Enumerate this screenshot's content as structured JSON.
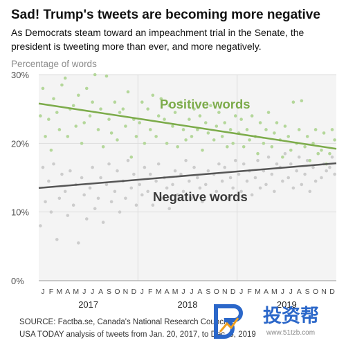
{
  "title": "Sad! Trump's tweets are becoming more negative",
  "subtitle": [
    "As Democrats steam toward an impeachment trial in the Senate, the",
    "president is tweeting more than ever, and more negatively."
  ],
  "source": [
    "SOURCE: Factba.se, Canada's National Research Council",
    "USA TODAY analysis of tweets from Jan. 20, 2017, to Dec. 5, 2019"
  ],
  "watermark": {
    "text": "投资帮",
    "url": "www.51tzb.com"
  },
  "colors": {
    "positive": "#7cab4a",
    "positive_points": "#b4d79a",
    "negative": "#555555",
    "negative_points": "#cccccc",
    "grid": "#dddddd",
    "background": "#f4f4f4"
  },
  "chart_data": {
    "type": "scatter",
    "title": "Sad! Trump's tweets are becoming more negative",
    "ylabel": "Percentage of words",
    "xlabel": "",
    "ylim": [
      0,
      30
    ],
    "y_ticks": [
      "0%",
      "10%",
      "20%",
      "30%"
    ],
    "x_range": [
      "2017-01",
      "2019-12"
    ],
    "month_labels": [
      "J",
      "F",
      "M",
      "A",
      "M",
      "J",
      "J",
      "A",
      "S",
      "O",
      "N",
      "D",
      "J",
      "F",
      "M",
      "A",
      "M",
      "J",
      "J",
      "A",
      "S",
      "O",
      "N",
      "D",
      "J",
      "F",
      "M",
      "A",
      "M",
      "J",
      "J",
      "A",
      "S",
      "O",
      "N",
      "D"
    ],
    "year_labels": [
      "2017",
      "2018",
      "2019"
    ],
    "grid": true,
    "series": [
      {
        "name": "Positive words",
        "trend": {
          "start": {
            "x": "2017-01",
            "y": 25.8
          },
          "end": {
            "x": "2019-12",
            "y": 19.2
          }
        },
        "points": [
          [
            "2017-01",
            24
          ],
          [
            "2017-01",
            28
          ],
          [
            "2017-01",
            21
          ],
          [
            "2017-02",
            23.5
          ],
          [
            "2017-02",
            19
          ],
          [
            "2017-02",
            26.5
          ],
          [
            "2017-03",
            24.5
          ],
          [
            "2017-03",
            22
          ],
          [
            "2017-03",
            28.5
          ],
          [
            "2017-04",
            29.5
          ],
          [
            "2017-04",
            21
          ],
          [
            "2017-04",
            25
          ],
          [
            "2017-05",
            25.5
          ],
          [
            "2017-05",
            22.5
          ],
          [
            "2017-05",
            27
          ],
          [
            "2017-06",
            20
          ],
          [
            "2017-06",
            23
          ],
          [
            "2017-06",
            28
          ],
          [
            "2017-07",
            24
          ],
          [
            "2017-07",
            26
          ],
          [
            "2017-07",
            30
          ],
          [
            "2017-08",
            22
          ],
          [
            "2017-08",
            25
          ],
          [
            "2017-08",
            19.5
          ],
          [
            "2017-09",
            29.8
          ],
          [
            "2017-09",
            23.5
          ],
          [
            "2017-09",
            21.5
          ],
          [
            "2017-10",
            26
          ],
          [
            "2017-10",
            20.5
          ],
          [
            "2017-10",
            24.5
          ],
          [
            "2017-11",
            25
          ],
          [
            "2017-11",
            22.5
          ],
          [
            "2017-11",
            27.5
          ],
          [
            "2017-12",
            18
          ],
          [
            "2017-12",
            23.5
          ],
          [
            "2017-12",
            21
          ],
          [
            "2018-01",
            23
          ],
          [
            "2018-01",
            26
          ],
          [
            "2018-01",
            20
          ],
          [
            "2018-02",
            25
          ],
          [
            "2018-02",
            22
          ],
          [
            "2018-02",
            27
          ],
          [
            "2018-03",
            21
          ],
          [
            "2018-03",
            24
          ],
          [
            "2018-03",
            26.5
          ],
          [
            "2018-04",
            23.5
          ],
          [
            "2018-04",
            20
          ],
          [
            "2018-04",
            25.5
          ],
          [
            "2018-05",
            22.5
          ],
          [
            "2018-05",
            24.5
          ],
          [
            "2018-05",
            19.5
          ],
          [
            "2018-06",
            26
          ],
          [
            "2018-06",
            22
          ],
          [
            "2018-06",
            20.5
          ],
          [
            "2018-07",
            23.5
          ],
          [
            "2018-07",
            21
          ],
          [
            "2018-07",
            25
          ],
          [
            "2018-08",
            22
          ],
          [
            "2018-08",
            24
          ],
          [
            "2018-08",
            19
          ],
          [
            "2018-09",
            23
          ],
          [
            "2018-09",
            21.5
          ],
          [
            "2018-09",
            25.5
          ],
          [
            "2018-10",
            20.5
          ],
          [
            "2018-10",
            22.5
          ],
          [
            "2018-10",
            24.5
          ],
          [
            "2018-11",
            21
          ],
          [
            "2018-11",
            23
          ],
          [
            "2018-11",
            19.5
          ],
          [
            "2018-12",
            22
          ],
          [
            "2018-12",
            20
          ],
          [
            "2018-12",
            24
          ],
          [
            "2019-01",
            21.5
          ],
          [
            "2019-01",
            23.5
          ],
          [
            "2019-01",
            19.5
          ],
          [
            "2019-02",
            22
          ],
          [
            "2019-02",
            20.5
          ],
          [
            "2019-02",
            24
          ],
          [
            "2019-03",
            21
          ],
          [
            "2019-03",
            18.5
          ],
          [
            "2019-03",
            23
          ],
          [
            "2019-04",
            20
          ],
          [
            "2019-04",
            22
          ],
          [
            "2019-04",
            24.5
          ],
          [
            "2019-05",
            19.5
          ],
          [
            "2019-05",
            21.5
          ],
          [
            "2019-05",
            23
          ],
          [
            "2019-06",
            20.5
          ],
          [
            "2019-06",
            18
          ],
          [
            "2019-06",
            22.5
          ],
          [
            "2019-07",
            21
          ],
          [
            "2019-07",
            19
          ],
          [
            "2019-07",
            26
          ],
          [
            "2019-08",
            20
          ],
          [
            "2019-08",
            22
          ],
          [
            "2019-08",
            26.2
          ],
          [
            "2019-09",
            19.5
          ],
          [
            "2019-09",
            21
          ],
          [
            "2019-09",
            17.5
          ],
          [
            "2019-10",
            20
          ],
          [
            "2019-10",
            22
          ],
          [
            "2019-10",
            18.5
          ],
          [
            "2019-11",
            19
          ],
          [
            "2019-11",
            21.5
          ],
          [
            "2019-11",
            17
          ],
          [
            "2019-12",
            18.5
          ],
          [
            "2019-12",
            22
          ],
          [
            "2019-12",
            20.5
          ]
        ]
      },
      {
        "name": "Negative words",
        "trend": {
          "start": {
            "x": "2017-01",
            "y": 13.5
          },
          "end": {
            "x": "2019-12",
            "y": 17.1
          }
        },
        "points": [
          [
            "2017-01",
            8
          ],
          [
            "2017-01",
            16.5
          ],
          [
            "2017-01",
            11.5
          ],
          [
            "2017-02",
            14.5
          ],
          [
            "2017-02",
            10
          ],
          [
            "2017-02",
            17
          ],
          [
            "2017-03",
            6
          ],
          [
            "2017-03",
            12
          ],
          [
            "2017-03",
            15.5
          ],
          [
            "2017-04",
            13
          ],
          [
            "2017-04",
            9.5
          ],
          [
            "2017-04",
            16
          ],
          [
            "2017-05",
            11
          ],
          [
            "2017-05",
            14
          ],
          [
            "2017-05",
            5.5
          ],
          [
            "2017-06",
            15
          ],
          [
            "2017-06",
            12.5
          ],
          [
            "2017-06",
            9
          ],
          [
            "2017-07",
            13.5
          ],
          [
            "2017-07",
            16.5
          ],
          [
            "2017-07",
            10.5
          ],
          [
            "2017-08",
            12
          ],
          [
            "2017-08",
            15
          ],
          [
            "2017-08",
            8.5
          ],
          [
            "2017-09",
            14
          ],
          [
            "2017-09",
            17
          ],
          [
            "2017-09",
            11.5
          ],
          [
            "2017-10",
            13
          ],
          [
            "2017-10",
            16
          ],
          [
            "2017-10",
            10
          ],
          [
            "2017-11",
            14.5
          ],
          [
            "2017-11",
            12
          ],
          [
            "2017-11",
            17.5
          ],
          [
            "2017-12",
            13.5
          ],
          [
            "2017-12",
            15.5
          ],
          [
            "2017-12",
            11
          ],
          [
            "2018-01",
            14
          ],
          [
            "2018-01",
            12.5
          ],
          [
            "2018-01",
            16.5
          ],
          [
            "2018-02",
            13
          ],
          [
            "2018-02",
            15.5
          ],
          [
            "2018-02",
            11
          ],
          [
            "2018-03",
            14.5
          ],
          [
            "2018-03",
            17
          ],
          [
            "2018-03",
            12
          ],
          [
            "2018-04",
            15
          ],
          [
            "2018-04",
            13.5
          ],
          [
            "2018-04",
            10.5
          ],
          [
            "2018-05",
            14
          ],
          [
            "2018-05",
            16
          ],
          [
            "2018-05",
            12.5
          ],
          [
            "2018-06",
            15.5
          ],
          [
            "2018-06",
            13
          ],
          [
            "2018-06",
            17.5
          ],
          [
            "2018-07",
            14.5
          ],
          [
            "2018-07",
            12
          ],
          [
            "2018-07",
            16.5
          ],
          [
            "2018-08",
            15
          ],
          [
            "2018-08",
            13.5
          ],
          [
            "2018-08",
            11.5
          ],
          [
            "2018-09",
            14
          ],
          [
            "2018-09",
            16
          ],
          [
            "2018-09",
            12.5
          ],
          [
            "2018-10",
            15.5
          ],
          [
            "2018-10",
            13
          ],
          [
            "2018-10",
            17
          ],
          [
            "2018-11",
            14.5
          ],
          [
            "2018-11",
            16.5
          ],
          [
            "2018-11",
            12
          ],
          [
            "2018-12",
            15
          ],
          [
            "2018-12",
            13.5
          ],
          [
            "2018-12",
            17.5
          ],
          [
            "2019-01",
            15.5
          ],
          [
            "2019-01",
            13
          ],
          [
            "2019-01",
            17
          ],
          [
            "2019-02",
            14.5
          ],
          [
            "2019-02",
            16
          ],
          [
            "2019-02",
            12.5
          ],
          [
            "2019-03",
            15
          ],
          [
            "2019-03",
            17.5
          ],
          [
            "2019-03",
            13.5
          ],
          [
            "2019-04",
            16
          ],
          [
            "2019-04",
            14
          ],
          [
            "2019-04",
            18
          ],
          [
            "2019-05",
            15.5
          ],
          [
            "2019-05",
            13
          ],
          [
            "2019-05",
            17
          ],
          [
            "2019-06",
            16.5
          ],
          [
            "2019-06",
            14.5
          ],
          [
            "2019-06",
            18.5
          ],
          [
            "2019-07",
            15
          ],
          [
            "2019-07",
            17
          ],
          [
            "2019-07",
            13.5
          ],
          [
            "2019-08",
            16
          ],
          [
            "2019-08",
            18
          ],
          [
            "2019-08",
            14
          ],
          [
            "2019-09",
            15.5
          ],
          [
            "2019-09",
            17.5
          ],
          [
            "2019-09",
            13
          ],
          [
            "2019-10",
            16.5
          ],
          [
            "2019-10",
            14.5
          ],
          [
            "2019-10",
            18.5
          ],
          [
            "2019-11",
            15
          ],
          [
            "2019-11",
            17
          ],
          [
            "2019-11",
            16
          ],
          [
            "2019-12",
            16.5
          ],
          [
            "2019-12",
            18
          ],
          [
            "2019-12",
            15.5
          ]
        ]
      }
    ]
  }
}
